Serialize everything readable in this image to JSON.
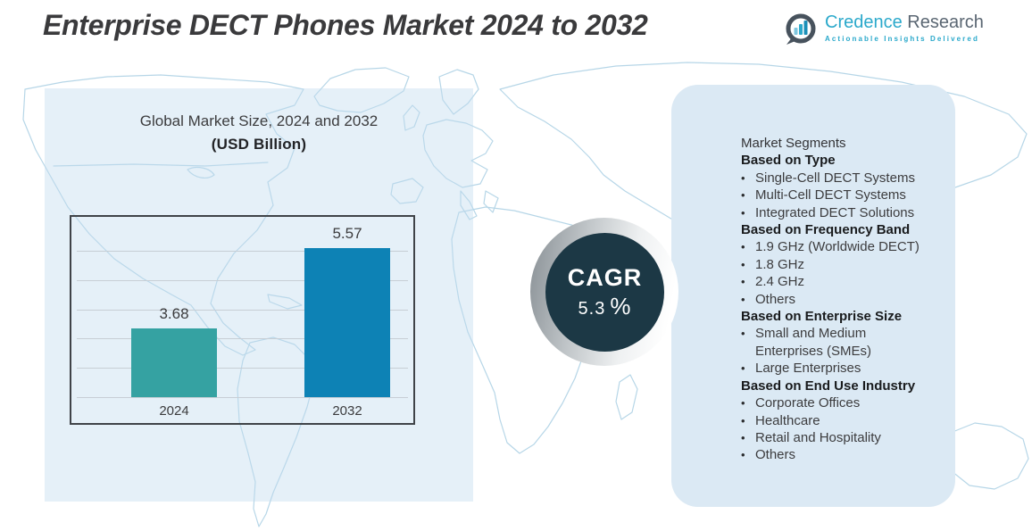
{
  "page": {
    "title": "Enterprise DECT Phones Market 2024 to 2032"
  },
  "logo": {
    "brand_primary": "Credence",
    "brand_secondary": "Research",
    "tagline": "Actionable Insights Delivered",
    "icon": "bar-chart-speech-bubble-icon"
  },
  "chart": {
    "title": "Global Market Size,  2024 and 2032",
    "subtitle": "(USD Billion)"
  },
  "chart_data": {
    "type": "bar",
    "title": "Global Market Size, 2024 and 2032 (USD Billion)",
    "categories": [
      "2024",
      "2032"
    ],
    "values": [
      3.68,
      5.57
    ],
    "value_labels": [
      "3.68",
      "5.57"
    ],
    "bar_colors": [
      "#35a2a2",
      "#0d82b5"
    ],
    "ylabel": "USD Billion",
    "ylim": [
      2,
      7
    ],
    "grid": true,
    "legend": "none"
  },
  "cagr": {
    "label": "CAGR",
    "value": "5.3",
    "unit": "%"
  },
  "segments": {
    "lines": [
      {
        "type": "plain",
        "text": "Market Segments"
      },
      {
        "type": "header",
        "text": "Based on Type"
      },
      {
        "type": "bullet",
        "text": "Single-Cell DECT Systems"
      },
      {
        "type": "bullet",
        "text": "Multi-Cell DECT Systems"
      },
      {
        "type": "bullet",
        "text": "Integrated DECT Solutions"
      },
      {
        "type": "header",
        "text": "Based on Frequency Band"
      },
      {
        "type": "bullet",
        "text": "1.9 GHz (Worldwide DECT)"
      },
      {
        "type": "bullet",
        "text": "1.8 GHz"
      },
      {
        "type": "bullet",
        "text": "2.4 GHz"
      },
      {
        "type": "bullet",
        "text": "Others"
      },
      {
        "type": "header",
        "text": "Based on Enterprise Size"
      },
      {
        "type": "bullet",
        "text": "Small and Medium"
      },
      {
        "type": "continuation",
        "text": "Enterprises (SMEs)"
      },
      {
        "type": "bullet",
        "text": "Large Enterprises"
      },
      {
        "type": "header",
        "text": "Based on End Use Industry"
      },
      {
        "type": "bullet",
        "text": "Corporate Offices"
      },
      {
        "type": "bullet",
        "text": "Healthcare"
      },
      {
        "type": "bullet",
        "text": "Retail and Hospitality"
      },
      {
        "type": "bullet",
        "text": "Others"
      }
    ]
  },
  "colors": {
    "bar_2024": "#35a2a2",
    "bar_2032": "#0d82b5",
    "cagr_circle": "#1c3845",
    "right_panel_bg": "#dbe9f4",
    "left_panel_bg": "#e9f1f8",
    "brand_teal": "#2ba9cb",
    "brand_gray": "#5a6672",
    "map_stroke": "#afd2e5",
    "title_text": "#3a3a3c"
  }
}
